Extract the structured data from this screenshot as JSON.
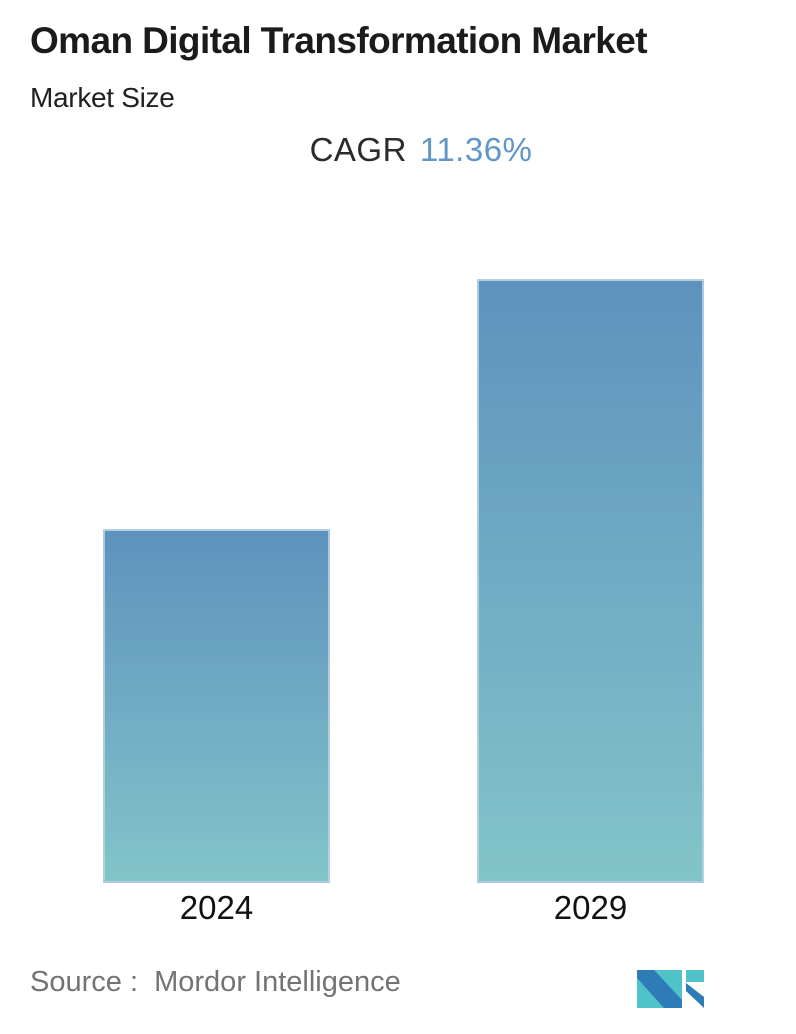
{
  "header": {
    "title": "Oman Digital Transformation Market",
    "subtitle": "Market Size"
  },
  "cagr": {
    "label": "CAGR",
    "value": "11.36%"
  },
  "chart_data": {
    "type": "bar",
    "categories": [
      "2024",
      "2029"
    ],
    "values": [
      58.6,
      100
    ],
    "unit": "relative market size (no numeric axis shown on chart)",
    "title": "Oman Digital Transformation Market",
    "subtitle": "Market Size",
    "annotations": [
      "CAGR 11.36%"
    ],
    "xlabel": "",
    "ylabel": "",
    "ylim": [
      0,
      100
    ],
    "grid": false,
    "legend": false,
    "bar_gradient_top": "#5e92be",
    "bar_gradient_bottom": "#83c4c9"
  },
  "footer": {
    "source_label": "Source :  Mordor Intelligence"
  },
  "logo": {
    "name": "mordor-intelligence-logo",
    "teal": "#4fc3c7",
    "blue": "#2d7cb8"
  },
  "colors": {
    "title_text": "#1b1b1b",
    "cagr_value_blue": "#6096c8",
    "axis_label_text": "#111111",
    "source_text": "#737373",
    "bar_border": "#bad4e3"
  }
}
